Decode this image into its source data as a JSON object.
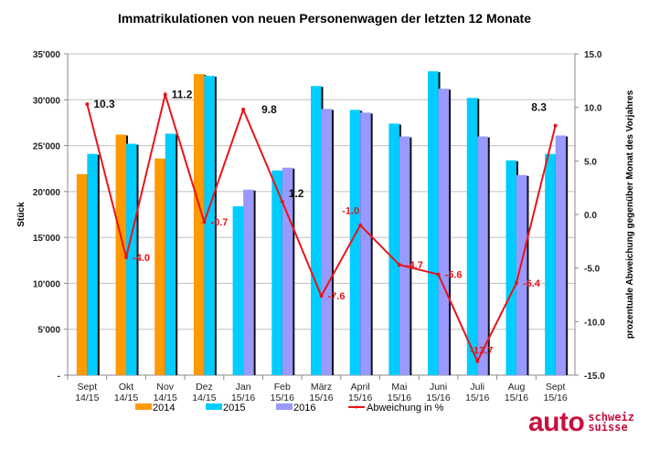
{
  "chart_data": {
    "type": "bar",
    "title": "Immatrikulationen von neuen Personenwagen der letzten 12 Monate",
    "ylabel": "Stück",
    "y2label": "prozentuale Abweichung gegenüber Monat des Vorjahres",
    "ylim": [
      0,
      35000
    ],
    "y2lim": [
      -15,
      15
    ],
    "yticks": [
      "-",
      "5'000",
      "10'000",
      "15'000",
      "20'000",
      "25'000",
      "30'000",
      "35'000"
    ],
    "y2ticks": [
      "-15.0",
      "-10.0",
      "-5.0",
      "0.0",
      "5.0",
      "10.0",
      "15.0"
    ],
    "grid": true,
    "legend_placement": "bottom",
    "categories": [
      [
        "Sept",
        "14/15"
      ],
      [
        "Okt",
        "14/15"
      ],
      [
        "Nov",
        "14/15"
      ],
      [
        "Dez",
        "14/15"
      ],
      [
        "Jan",
        "15/16"
      ],
      [
        "Feb",
        "15/16"
      ],
      [
        "März",
        "15/16"
      ],
      [
        "April",
        "15/16"
      ],
      [
        "Mai",
        "15/16"
      ],
      [
        "Juni",
        "15/16"
      ],
      [
        "Juli",
        "15/16"
      ],
      [
        "Aug",
        "15/16"
      ],
      [
        "Sept",
        "15/16"
      ]
    ],
    "series": [
      {
        "name": "2014",
        "color": "#ff9900",
        "values": [
          21900,
          26200,
          23600,
          32800,
          null,
          null,
          null,
          null,
          null,
          null,
          null,
          null,
          null
        ]
      },
      {
        "name": "2015",
        "color": "#00ccff",
        "values": [
          24100,
          25200,
          26300,
          32600,
          18400,
          22300,
          31500,
          28900,
          27400,
          33100,
          30200,
          23400,
          24100
        ]
      },
      {
        "name": "2016",
        "color": "#9999ff",
        "values": [
          null,
          null,
          null,
          null,
          20200,
          22600,
          29000,
          28600,
          26000,
          31200,
          26000,
          21800,
          26100
        ]
      }
    ],
    "line": {
      "name": "Abweichung in %",
      "color": "#e8141b",
      "axis": "right",
      "values": [
        10.3,
        -4.0,
        11.2,
        -0.7,
        9.8,
        1.2,
        -7.6,
        -1.0,
        -4.7,
        -5.6,
        -13.7,
        -6.4,
        8.3
      ],
      "labels": [
        "10.3",
        "-4.0",
        "11.2",
        "-0.7",
        "9.8",
        "1.2",
        "-7.6",
        "-1.0",
        "-4.7",
        "-5.6",
        "-13.7",
        "-6.4",
        "8.3"
      ]
    }
  },
  "logo": {
    "main": "auto",
    "line1": "schweiz",
    "line2": "suisse"
  }
}
